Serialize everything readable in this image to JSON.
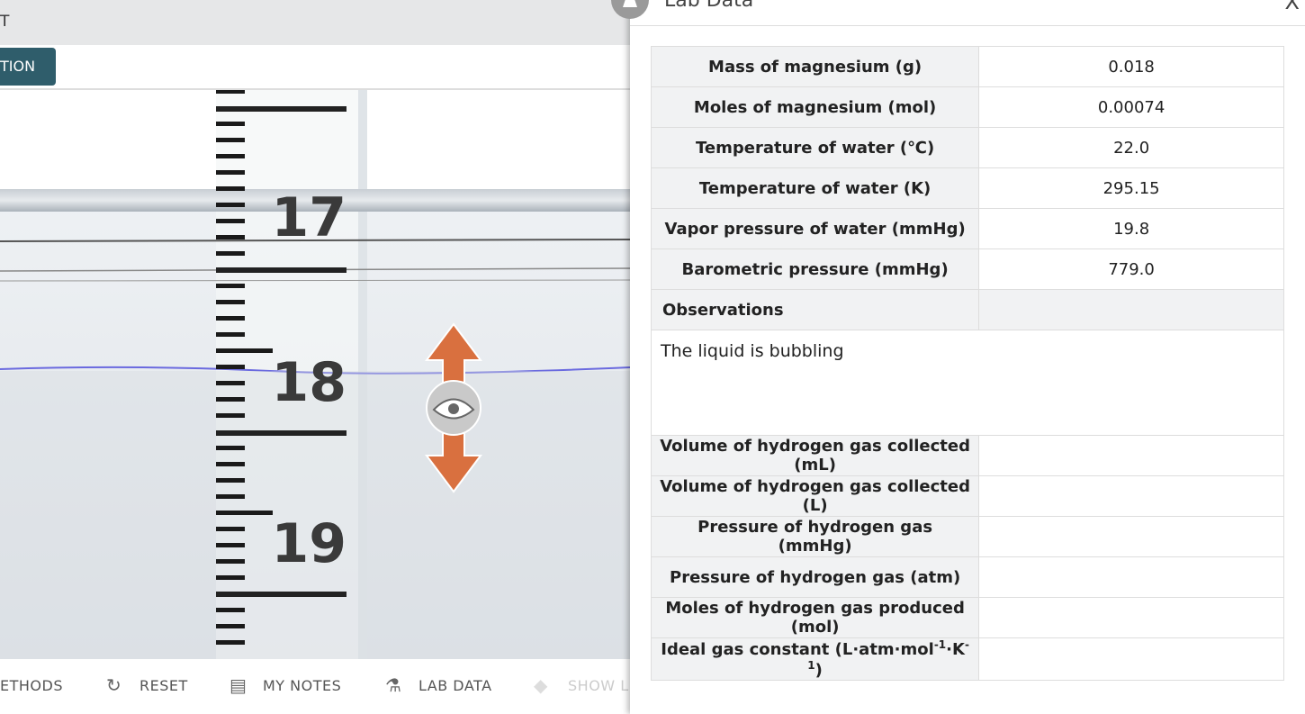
{
  "header": {
    "partial_title": "T",
    "button": "TION"
  },
  "simulation": {
    "scale_labels": [
      "17",
      "18",
      "19"
    ]
  },
  "toolbar": {
    "items": [
      "ETHODS",
      "RESET",
      "MY NOTES",
      "LAB DATA",
      "SHOW L"
    ]
  },
  "panel": {
    "title": "Lab Data",
    "close": "X",
    "table": {
      "rows": [
        [
          "Mass of magnesium (g)",
          "0.018"
        ],
        [
          "Moles of magnesium (mol)",
          "0.00074"
        ],
        [
          "Temperature of water (℃)",
          "22.0"
        ],
        [
          "Temperature of water (K)",
          "295.15"
        ],
        [
          "Vapor pressure of water (mmHg)",
          "19.8"
        ],
        [
          "Barometric pressure (mmHg)",
          "779.0"
        ]
      ],
      "observations_header": "Observations",
      "observations": "The liquid is bubbling",
      "result_rows": [
        "Volume of hydrogen gas collected (mL)",
        "Volume of hydrogen gas collected (L)",
        "Pressure of hydrogen gas (mmHg)",
        "Pressure of hydrogen gas (atm)",
        "Moles of hydrogen gas produced (mol)"
      ],
      "last_row_parts": [
        "Ideal gas constant (L·atm·mol",
        "-1",
        "·K",
        "-1",
        ")"
      ]
    }
  }
}
